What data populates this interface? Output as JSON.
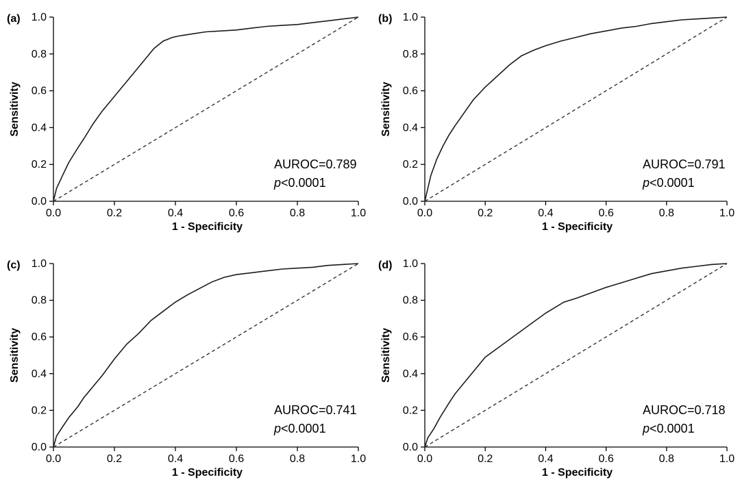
{
  "chart_data": [
    {
      "type": "line",
      "panel_label": "(a)",
      "xlabel": "1 - Specificity",
      "ylabel": "Sensitivity",
      "xlim": [
        0,
        1
      ],
      "ylim": [
        0,
        1
      ],
      "xticks": [
        "0.0",
        "0.2",
        "0.4",
        "0.6",
        "0.8",
        "1.0"
      ],
      "yticks": [
        "0.0",
        "0.2",
        "0.4",
        "0.6",
        "0.8",
        "1.0"
      ],
      "annotation": {
        "auroc": "AUROC=0.789",
        "p_letter": "p",
        "p_rest": "<0.0001"
      },
      "series": [
        {
          "x": [
            0,
            0.01,
            0.03,
            0.05,
            0.08,
            0.1,
            0.13,
            0.16,
            0.2,
            0.24,
            0.27,
            0.3,
            0.33,
            0.36,
            0.39,
            0.42,
            0.46,
            0.5,
            0.55,
            0.6,
            0.65,
            0.7,
            0.75,
            0.8,
            0.85,
            0.9,
            0.95,
            1.0
          ],
          "y": [
            0,
            0.07,
            0.14,
            0.21,
            0.29,
            0.34,
            0.42,
            0.49,
            0.57,
            0.65,
            0.71,
            0.77,
            0.83,
            0.87,
            0.89,
            0.9,
            0.91,
            0.92,
            0.925,
            0.93,
            0.94,
            0.95,
            0.955,
            0.96,
            0.97,
            0.98,
            0.99,
            1.0
          ]
        },
        {
          "style": "dashed",
          "x": [
            0,
            1
          ],
          "y": [
            0,
            1
          ]
        }
      ]
    },
    {
      "type": "line",
      "panel_label": "(b)",
      "xlabel": "1 - Specificity",
      "ylabel": "Sensitivity",
      "xlim": [
        0,
        1
      ],
      "ylim": [
        0,
        1
      ],
      "xticks": [
        "0.0",
        "0.2",
        "0.4",
        "0.6",
        "0.8",
        "1.0"
      ],
      "yticks": [
        "0.0",
        "0.2",
        "0.4",
        "0.6",
        "0.8",
        "1.0"
      ],
      "annotation": {
        "auroc": "AUROC=0.791",
        "p_letter": "p",
        "p_rest": "<0.0001"
      },
      "series": [
        {
          "x": [
            0,
            0.01,
            0.02,
            0.04,
            0.06,
            0.08,
            0.1,
            0.13,
            0.16,
            0.2,
            0.24,
            0.28,
            0.32,
            0.36,
            0.4,
            0.45,
            0.5,
            0.55,
            0.6,
            0.65,
            0.7,
            0.75,
            0.8,
            0.85,
            0.9,
            0.95,
            1.0
          ],
          "y": [
            0,
            0.07,
            0.14,
            0.23,
            0.3,
            0.36,
            0.41,
            0.48,
            0.55,
            0.62,
            0.68,
            0.74,
            0.79,
            0.82,
            0.845,
            0.87,
            0.89,
            0.91,
            0.925,
            0.94,
            0.95,
            0.965,
            0.975,
            0.985,
            0.99,
            0.995,
            1.0
          ]
        },
        {
          "style": "dashed",
          "x": [
            0,
            1
          ],
          "y": [
            0,
            1
          ]
        }
      ]
    },
    {
      "type": "line",
      "panel_label": "(c)",
      "xlabel": "1 - Specificity",
      "ylabel": "Sensitivity",
      "xlim": [
        0,
        1
      ],
      "ylim": [
        0,
        1
      ],
      "xticks": [
        "0.0",
        "0.2",
        "0.4",
        "0.6",
        "0.8",
        "1.0"
      ],
      "yticks": [
        "0.0",
        "0.2",
        "0.4",
        "0.6",
        "0.8",
        "1.0"
      ],
      "annotation": {
        "auroc": "AUROC=0.741",
        "p_letter": "p",
        "p_rest": "<0.0001"
      },
      "series": [
        {
          "x": [
            0,
            0.01,
            0.03,
            0.05,
            0.08,
            0.1,
            0.13,
            0.16,
            0.2,
            0.24,
            0.28,
            0.32,
            0.36,
            0.4,
            0.44,
            0.48,
            0.52,
            0.56,
            0.6,
            0.65,
            0.7,
            0.75,
            0.8,
            0.85,
            0.9,
            0.95,
            1.0
          ],
          "y": [
            0,
            0.06,
            0.11,
            0.16,
            0.22,
            0.27,
            0.33,
            0.39,
            0.48,
            0.56,
            0.62,
            0.69,
            0.74,
            0.79,
            0.83,
            0.865,
            0.9,
            0.925,
            0.94,
            0.95,
            0.96,
            0.97,
            0.975,
            0.98,
            0.99,
            0.995,
            1.0
          ]
        },
        {
          "style": "dashed",
          "x": [
            0,
            1
          ],
          "y": [
            0,
            1
          ]
        }
      ]
    },
    {
      "type": "line",
      "panel_label": "(d)",
      "xlabel": "1 - Specificity",
      "ylabel": "Sensitivity",
      "xlim": [
        0,
        1
      ],
      "ylim": [
        0,
        1
      ],
      "xticks": [
        "0.0",
        "0.2",
        "0.4",
        "0.6",
        "0.8",
        "1.0"
      ],
      "yticks": [
        "0.0",
        "0.2",
        "0.4",
        "0.6",
        "0.8",
        "1.0"
      ],
      "annotation": {
        "auroc": "AUROC=0.718",
        "p_letter": "p",
        "p_rest": "<0.0001"
      },
      "series": [
        {
          "x": [
            0,
            0.01,
            0.03,
            0.05,
            0.08,
            0.1,
            0.13,
            0.16,
            0.2,
            0.25,
            0.3,
            0.35,
            0.4,
            0.46,
            0.5,
            0.55,
            0.6,
            0.65,
            0.7,
            0.75,
            0.8,
            0.85,
            0.9,
            0.95,
            1.0
          ],
          "y": [
            0,
            0.05,
            0.1,
            0.16,
            0.24,
            0.29,
            0.35,
            0.41,
            0.49,
            0.55,
            0.61,
            0.67,
            0.73,
            0.79,
            0.81,
            0.84,
            0.87,
            0.895,
            0.92,
            0.945,
            0.96,
            0.975,
            0.985,
            0.995,
            1.0
          ]
        },
        {
          "style": "dashed",
          "x": [
            0,
            1
          ],
          "y": [
            0,
            1
          ]
        }
      ]
    }
  ]
}
